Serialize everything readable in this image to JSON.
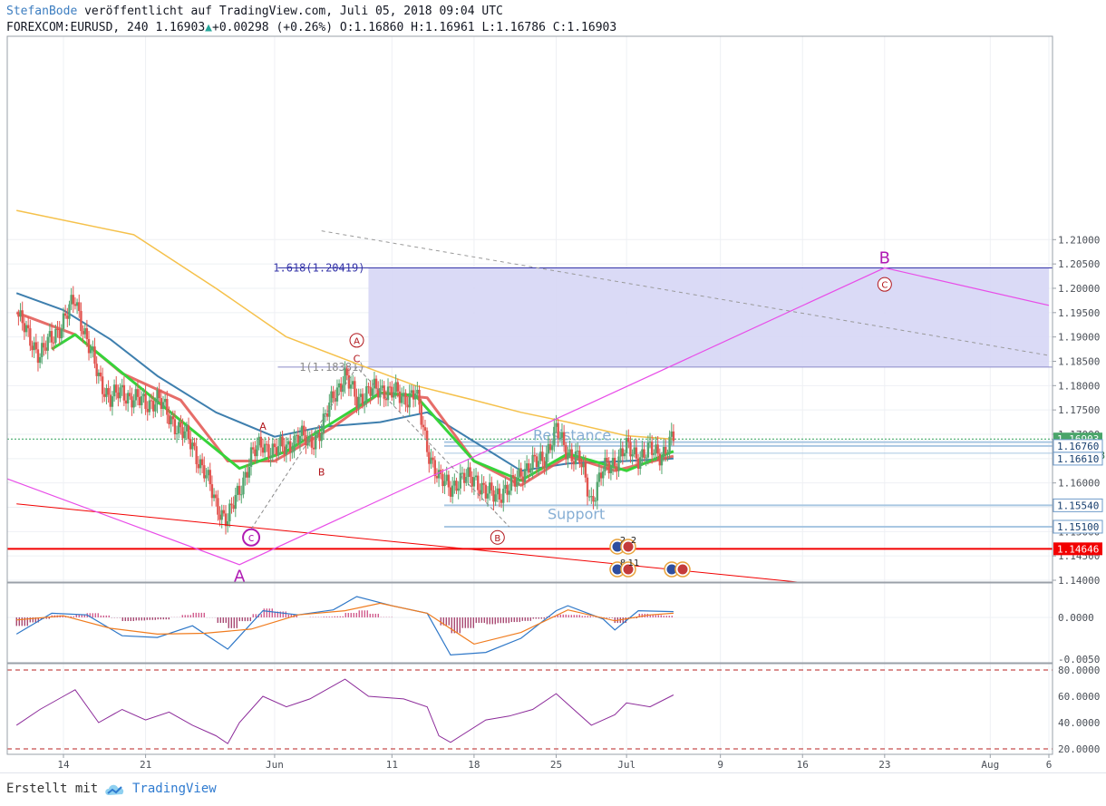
{
  "header": {
    "author": "StefanBode",
    "published_text": "veröffentlicht auf TradingView.com, Juli 05, 2018 09:04 UTC",
    "symbol": "FOREXCOM:EURUSD, 240",
    "last": "1.16903",
    "change": "+0.00298 (+0.26%)",
    "open_label": "O:",
    "open": "1.16860",
    "high_label": "H:",
    "high": "1.16961",
    "low_label": "L:",
    "low": "1.16786",
    "close_label": "C:",
    "close": "1.16903",
    "arrow_icon": "up-triangle-icon"
  },
  "footer": {
    "created_with": "Erstellt mit",
    "brand": "TradingView",
    "logo_icon": "tradingview-cloud-icon"
  },
  "colors": {
    "up_candle": "#54a66f",
    "down_candle": "#e2544f",
    "ma_fast": "#e2544f",
    "ma_green": "#37d33a",
    "ma_blue": "#3e7fae",
    "ma_orange": "#f5c14b",
    "elliott": "#e84de8",
    "zone": "#d6d6f5",
    "support_line": "#a9c7e2",
    "red_level": "#f20000",
    "rsi_line": "#8c2b9a"
  },
  "chart_data": [
    {
      "type": "candlestick",
      "title": "FOREXCOM:EURUSD, 240",
      "x_tick_labels": [
        "14",
        "21",
        "Jun",
        "11",
        "18",
        "25",
        "Jul",
        "9",
        "16",
        "23",
        "Aug",
        "6"
      ],
      "x_tick_dates": [
        "2018-05-14",
        "2018-05-21",
        "2018-06-01",
        "2018-06-11",
        "2018-06-18",
        "2018-06-25",
        "2018-07-01",
        "2018-07-09",
        "2018-07-16",
        "2018-07-23",
        "2018-08-01",
        "2018-08-06"
      ],
      "ylim": [
        1.134,
        1.2135
      ],
      "y_tick_labels": [
        "1.14000",
        "1.14500",
        "1.15000",
        "1.15500",
        "1.16000",
        "1.16500",
        "1.17000",
        "1.17500",
        "1.18000",
        "1.18500",
        "1.19000",
        "1.19500",
        "1.20000",
        "1.20500",
        "1.21000"
      ],
      "y_ticks": [
        1.14,
        1.145,
        1.15,
        1.155,
        1.16,
        1.165,
        1.17,
        1.175,
        1.18,
        1.185,
        1.19,
        1.195,
        1.2,
        1.205,
        1.21
      ],
      "price_path": [
        [
          "2018-05-10",
          1.195
        ],
        [
          "2018-05-11",
          1.19
        ],
        [
          "2018-05-12",
          1.1865
        ],
        [
          "2018-05-13",
          1.1895
        ],
        [
          "2018-05-14",
          1.1935
        ],
        [
          "2018-05-15",
          1.1975
        ],
        [
          "2018-05-16",
          1.1895
        ],
        [
          "2018-05-17",
          1.1815
        ],
        [
          "2018-05-18",
          1.1775
        ],
        [
          "2018-05-19",
          1.1785
        ],
        [
          "2018-05-20",
          1.1775
        ],
        [
          "2018-05-21",
          1.176
        ],
        [
          "2018-05-22",
          1.1775
        ],
        [
          "2018-05-23",
          1.1735
        ],
        [
          "2018-05-24",
          1.171
        ],
        [
          "2018-05-25",
          1.1675
        ],
        [
          "2018-05-26",
          1.1625
        ],
        [
          "2018-05-27",
          1.1555
        ],
        [
          "2018-05-28",
          1.1525
        ],
        [
          "2018-05-29",
          1.1585
        ],
        [
          "2018-05-30",
          1.1655
        ],
        [
          "2018-05-31",
          1.168
        ],
        [
          "2018-06-01",
          1.1665
        ],
        [
          "2018-06-02",
          1.1675
        ],
        [
          "2018-06-03",
          1.1695
        ],
        [
          "2018-06-04",
          1.1685
        ],
        [
          "2018-06-05",
          1.1705
        ],
        [
          "2018-06-06",
          1.1785
        ],
        [
          "2018-06-07",
          1.1815
        ],
        [
          "2018-06-08",
          1.1775
        ],
        [
          "2018-06-09",
          1.1785
        ],
        [
          "2018-06-10",
          1.1795
        ],
        [
          "2018-06-11",
          1.1785
        ],
        [
          "2018-06-12",
          1.1775
        ],
        [
          "2018-06-13",
          1.1785
        ],
        [
          "2018-06-14",
          1.1675
        ],
        [
          "2018-06-15",
          1.1605
        ],
        [
          "2018-06-16",
          1.1595
        ],
        [
          "2018-06-17",
          1.1605
        ],
        [
          "2018-06-18",
          1.1615
        ],
        [
          "2018-06-19",
          1.1575
        ],
        [
          "2018-06-20",
          1.158
        ],
        [
          "2018-06-21",
          1.1585
        ],
        [
          "2018-06-22",
          1.1625
        ],
        [
          "2018-06-23",
          1.1635
        ],
        [
          "2018-06-24",
          1.1655
        ],
        [
          "2018-06-25",
          1.1705
        ],
        [
          "2018-06-26",
          1.1665
        ],
        [
          "2018-06-27",
          1.1645
        ],
        [
          "2018-06-28",
          1.1565
        ],
        [
          "2018-06-29",
          1.1625
        ],
        [
          "2018-06-30",
          1.1645
        ],
        [
          "2018-07-01",
          1.167
        ],
        [
          "2018-07-02",
          1.1655
        ],
        [
          "2018-07-03",
          1.1665
        ],
        [
          "2018-07-04",
          1.166
        ],
        [
          "2018-07-05",
          1.16903
        ]
      ],
      "moving_averages": [
        {
          "color_key": "ma_orange",
          "points": [
            [
              "2018-05-10",
              1.216
            ],
            [
              "2018-05-20",
              1.211
            ],
            [
              "2018-05-27",
              1.2
            ],
            [
              "2018-06-02",
              1.19
            ],
            [
              "2018-06-08",
              1.1845
            ],
            [
              "2018-06-13",
              1.18
            ],
            [
              "2018-06-18",
              1.177
            ],
            [
              "2018-06-22",
              1.1745
            ],
            [
              "2018-06-26",
              1.1725
            ],
            [
              "2018-07-01",
              1.1697
            ],
            [
              "2018-07-05",
              1.169
            ]
          ]
        },
        {
          "color_key": "ma_blue",
          "points": [
            [
              "2018-05-10",
              1.199
            ],
            [
              "2018-05-14",
              1.1955
            ],
            [
              "2018-05-18",
              1.1895
            ],
            [
              "2018-05-22",
              1.182
            ],
            [
              "2018-05-27",
              1.1745
            ],
            [
              "2018-06-01",
              1.1695
            ],
            [
              "2018-06-05",
              1.1715
            ],
            [
              "2018-06-10",
              1.1725
            ],
            [
              "2018-06-14",
              1.1745
            ],
            [
              "2018-06-18",
              1.1685
            ],
            [
              "2018-06-22",
              1.1625
            ],
            [
              "2018-06-26",
              1.164
            ],
            [
              "2018-07-01",
              1.1645
            ],
            [
              "2018-07-05",
              1.165
            ]
          ]
        },
        {
          "color_key": "ma_fast",
          "points": [
            [
              "2018-05-10",
              1.195
            ],
            [
              "2018-05-15",
              1.1905
            ],
            [
              "2018-05-19",
              1.1825
            ],
            [
              "2018-05-24",
              1.177
            ],
            [
              "2018-05-28",
              1.1645
            ],
            [
              "2018-06-01",
              1.1645
            ],
            [
              "2018-06-06",
              1.1715
            ],
            [
              "2018-06-10",
              1.1785
            ],
            [
              "2018-06-14",
              1.1775
            ],
            [
              "2018-06-18",
              1.1645
            ],
            [
              "2018-06-22",
              1.1595
            ],
            [
              "2018-06-26",
              1.1655
            ],
            [
              "2018-06-30",
              1.1625
            ],
            [
              "2018-07-05",
              1.1655
            ]
          ]
        },
        {
          "color_key": "ma_green",
          "points": [
            [
              "2018-05-13",
              1.1875
            ],
            [
              "2018-05-15",
              1.1905
            ],
            [
              "2018-05-29",
              1.163
            ],
            [
              "2018-06-02",
              1.1665
            ],
            [
              "2018-06-06",
              1.1725
            ],
            [
              "2018-06-10",
              1.1785
            ],
            [
              "2018-06-13",
              1.178
            ],
            [
              "2018-06-18",
              1.1645
            ],
            [
              "2018-06-22",
              1.1605
            ],
            [
              "2018-06-26",
              1.166
            ],
            [
              "2018-07-01",
              1.1625
            ],
            [
              "2018-07-05",
              1.1665
            ]
          ]
        }
      ],
      "fib_zone": {
        "label": "1.618(1.20419)",
        "from_date": "2018-06-09",
        "to_date": "2018-08-06",
        "ymin": 1.1838,
        "ymax": 1.2042
      },
      "fib_1_label": "1(1.18381)",
      "horizontal_levels": [
        {
          "value": 1.16903,
          "label": "1.16903",
          "style": "current"
        },
        {
          "label": "02:55:08",
          "style": "countdown"
        },
        {
          "value": 1.1684,
          "label": "",
          "style": "resistance"
        },
        {
          "value": 1.1676,
          "label": "1.16760",
          "style": "resistance"
        },
        {
          "value": 1.1661,
          "label": "1.16610",
          "style": "level"
        },
        {
          "value": 1.1554,
          "label": "1.15540",
          "style": "support"
        },
        {
          "value": 1.151,
          "label": "1.15100",
          "style": "support"
        },
        {
          "value": 1.14646,
          "label": "1.14646",
          "style": "red"
        }
      ],
      "zone_labels": [
        "Resistance",
        "Support"
      ],
      "elliott_path": [
        [
          "2018-05-07",
          1.1628
        ],
        [
          "2018-05-29",
          1.1432
        ],
        [
          "2018-07-23",
          1.2042
        ],
        [
          "2018-08-06",
          1.1965
        ]
      ],
      "elliott_labels": [
        {
          "text": "A",
          "date": "2018-05-29",
          "value": 1.1408,
          "kind": "big"
        },
        {
          "text": "B",
          "date": "2018-07-23",
          "value": 1.2062,
          "kind": "big"
        },
        {
          "text": "c",
          "date": "2018-05-30",
          "value": 1.1488,
          "kind": "circle-magenta"
        },
        {
          "text": "C",
          "date": "2018-07-23",
          "value": 1.2008,
          "kind": "circle-red"
        },
        {
          "text": "A",
          "date": "2018-06-08",
          "value": 1.1893,
          "kind": "circle-red"
        },
        {
          "text": "B",
          "date": "2018-06-20",
          "value": 1.1488,
          "kind": "circle-red"
        },
        {
          "text": "C",
          "date": "2018-06-08",
          "value": 1.1856,
          "kind": "plain"
        },
        {
          "text": "A",
          "date": "2018-05-31",
          "value": 1.1717,
          "kind": "plain"
        },
        {
          "text": "B",
          "date": "2018-06-05",
          "value": 1.1623,
          "kind": "plain"
        }
      ],
      "trendlines": [
        {
          "from": [
            "2018-05-10",
            1.1557
          ],
          "to": [
            "2018-07-31",
            1.1359
          ],
          "color_key": "red_level"
        },
        {
          "from": [
            "2018-06-05",
            1.2118
          ],
          "to": [
            "2018-08-06",
            1.1862
          ],
          "dashed": true
        }
      ],
      "event_icons": [
        {
          "text": "2"
        },
        {
          "text": "2"
        },
        {
          "text": "8"
        },
        {
          "text": "11"
        },
        {
          "text": ""
        }
      ]
    },
    {
      "type": "line",
      "title": "MACD",
      "ylim": [
        -0.0055,
        0.0032
      ],
      "y_tick_labels": [
        "0.0000",
        "-0.0050"
      ],
      "y_ticks": [
        0,
        -0.005
      ],
      "series": [
        {
          "color": "#2f78c8",
          "points": [
            [
              "2018-05-10",
              -0.002
            ],
            [
              "2018-05-13",
              0.0005
            ],
            [
              "2018-05-16",
              0.0003
            ],
            [
              "2018-05-19",
              -0.0022
            ],
            [
              "2018-05-22",
              -0.0024
            ],
            [
              "2018-05-25",
              -0.001
            ],
            [
              "2018-05-28",
              -0.0038
            ],
            [
              "2018-05-31",
              0.0008
            ],
            [
              "2018-06-03",
              0.0003
            ],
            [
              "2018-06-06",
              0.0009
            ],
            [
              "2018-06-08",
              0.0025
            ],
            [
              "2018-06-11",
              0.0014
            ],
            [
              "2018-06-14",
              0.0005
            ],
            [
              "2018-06-16",
              -0.0045
            ],
            [
              "2018-06-19",
              -0.0042
            ],
            [
              "2018-06-22",
              -0.0025
            ],
            [
              "2018-06-25",
              0.0008
            ],
            [
              "2018-06-26",
              0.0014
            ],
            [
              "2018-06-29",
              -0.0002
            ],
            [
              "2018-06-30",
              -0.0015
            ],
            [
              "2018-07-02",
              0.0008
            ],
            [
              "2018-07-05",
              0.0007
            ]
          ]
        },
        {
          "color": "#f07c1f",
          "points": [
            [
              "2018-05-10",
              -0.0003
            ],
            [
              "2018-05-14",
              0.0002
            ],
            [
              "2018-05-18",
              -0.0013
            ],
            [
              "2018-05-22",
              -0.002
            ],
            [
              "2018-05-26",
              -0.0019
            ],
            [
              "2018-05-30",
              -0.0014
            ],
            [
              "2018-06-03",
              0.0003
            ],
            [
              "2018-06-07",
              0.0008
            ],
            [
              "2018-06-10",
              0.0017
            ],
            [
              "2018-06-14",
              0.0005
            ],
            [
              "2018-06-18",
              -0.0032
            ],
            [
              "2018-06-22",
              -0.0018
            ],
            [
              "2018-06-26",
              0.0009
            ],
            [
              "2018-06-30",
              -0.0004
            ],
            [
              "2018-07-03",
              0.0003
            ],
            [
              "2018-07-05",
              0.0005
            ]
          ]
        }
      ]
    },
    {
      "type": "line",
      "title": "RSI",
      "ylim": [
        14,
        84
      ],
      "y_tick_labels": [
        "80.0000",
        "60.0000",
        "40.0000",
        "20.0000"
      ],
      "y_ticks": [
        80,
        60,
        40,
        20
      ],
      "bands": [
        80,
        20
      ],
      "series": [
        {
          "color_key": "rsi_line",
          "points": [
            [
              "2018-05-10",
              38
            ],
            [
              "2018-05-12",
              50
            ],
            [
              "2018-05-14",
              60
            ],
            [
              "2018-05-15",
              65
            ],
            [
              "2018-05-17",
              40
            ],
            [
              "2018-05-19",
              50
            ],
            [
              "2018-05-21",
              42
            ],
            [
              "2018-05-23",
              48
            ],
            [
              "2018-05-25",
              38
            ],
            [
              "2018-05-27",
              30
            ],
            [
              "2018-05-28",
              24
            ],
            [
              "2018-05-29",
              40
            ],
            [
              "2018-05-31",
              60
            ],
            [
              "2018-06-02",
              52
            ],
            [
              "2018-06-04",
              58
            ],
            [
              "2018-06-07",
              73
            ],
            [
              "2018-06-09",
              60
            ],
            [
              "2018-06-12",
              58
            ],
            [
              "2018-06-14",
              52
            ],
            [
              "2018-06-15",
              30
            ],
            [
              "2018-06-16",
              25
            ],
            [
              "2018-06-19",
              42
            ],
            [
              "2018-06-21",
              45
            ],
            [
              "2018-06-23",
              50
            ],
            [
              "2018-06-25",
              62
            ],
            [
              "2018-06-26",
              54
            ],
            [
              "2018-06-28",
              38
            ],
            [
              "2018-06-30",
              46
            ],
            [
              "2018-07-01",
              55
            ],
            [
              "2018-07-03",
              52
            ],
            [
              "2018-07-05",
              61
            ]
          ]
        }
      ]
    }
  ]
}
